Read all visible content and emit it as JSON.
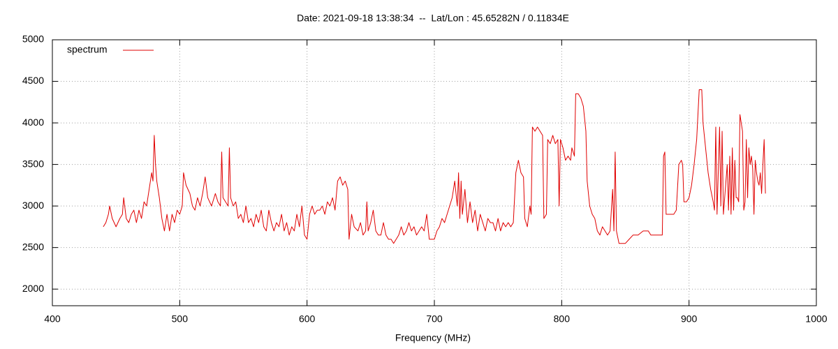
{
  "chart_data": {
    "type": "line",
    "title": "Date: 2021-09-18 13:38:34  --  Lat/Lon : 45.65282N / 0.11834E",
    "x_label": "Frequency (MHz)",
    "xlim": [
      400,
      1000
    ],
    "xticks": [
      400,
      500,
      600,
      700,
      800,
      900,
      1000
    ],
    "ylim": [
      1800,
      5000
    ],
    "yticks": [
      2000,
      2500,
      3000,
      3500,
      4000,
      4500,
      5000
    ],
    "grid": true,
    "legend": "top-left",
    "x": [
      440,
      442,
      444,
      445,
      447,
      450,
      453,
      455,
      456,
      458,
      460,
      462,
      464,
      466,
      468,
      470,
      472,
      474,
      476,
      478,
      479,
      480,
      481,
      482,
      484,
      486,
      488,
      490,
      492,
      494,
      496,
      498,
      500,
      502,
      503,
      505,
      508,
      510,
      512,
      514,
      516,
      518,
      520,
      522,
      525,
      528,
      530,
      532,
      533,
      534,
      536,
      538,
      539,
      540,
      542,
      544,
      546,
      548,
      550,
      552,
      554,
      556,
      558,
      560,
      562,
      564,
      566,
      568,
      570,
      572,
      574,
      576,
      578,
      580,
      582,
      584,
      586,
      588,
      590,
      592,
      594,
      596,
      598,
      600,
      602,
      604,
      606,
      608,
      610,
      612,
      614,
      616,
      618,
      620,
      622,
      624,
      626,
      628,
      630,
      632,
      633,
      635,
      637,
      640,
      642,
      644,
      646,
      647,
      648,
      650,
      652,
      654,
      656,
      658,
      660,
      662,
      664,
      666,
      668,
      670,
      672,
      674,
      676,
      678,
      680,
      682,
      684,
      686,
      688,
      690,
      692,
      694,
      696,
      698,
      700,
      702,
      704,
      706,
      708,
      710,
      712,
      714,
      716,
      718,
      719,
      720,
      721,
      722,
      724,
      726,
      728,
      730,
      732,
      734,
      736,
      738,
      740,
      742,
      744,
      746,
      748,
      750,
      752,
      754,
      756,
      758,
      760,
      762,
      764,
      766,
      768,
      770,
      771,
      773,
      775,
      776,
      777,
      779,
      781,
      783,
      785,
      786,
      788,
      789,
      791,
      793,
      795,
      797,
      798,
      799,
      801,
      803,
      805,
      807,
      808,
      810,
      811,
      813,
      815,
      817,
      819,
      820,
      822,
      824,
      826,
      828,
      830,
      832,
      834,
      836,
      838,
      840,
      841,
      842,
      843,
      845,
      847,
      850,
      853,
      856,
      860,
      864,
      868,
      870,
      873,
      876,
      878,
      879,
      880,
      881,
      882,
      885,
      888,
      890,
      892,
      894,
      895,
      896,
      898,
      900,
      902,
      904,
      906,
      908,
      910,
      911,
      913,
      915,
      917,
      919,
      920,
      921,
      922,
      924,
      925,
      926,
      927,
      929,
      930,
      931,
      932,
      933,
      934,
      935,
      936,
      937,
      938,
      939,
      940,
      942,
      943,
      944,
      945,
      946,
      947,
      948,
      949,
      950,
      951,
      952,
      953,
      954,
      955,
      956,
      957,
      958,
      959,
      960
    ],
    "series": [
      {
        "name": "spectrum",
        "color": "#e00000",
        "values": [
          2750,
          2800,
          2900,
          3000,
          2850,
          2750,
          2850,
          2900,
          3100,
          2850,
          2800,
          2900,
          2950,
          2800,
          2950,
          2850,
          3050,
          3000,
          3200,
          3400,
          3300,
          3850,
          3500,
          3300,
          3100,
          2850,
          2700,
          2900,
          2700,
          2900,
          2800,
          2950,
          2900,
          3000,
          3400,
          3250,
          3150,
          3000,
          2950,
          3100,
          3000,
          3150,
          3350,
          3100,
          3000,
          3150,
          3050,
          3000,
          3650,
          3100,
          3050,
          3000,
          3700,
          3100,
          3000,
          3050,
          2850,
          2900,
          2800,
          3000,
          2800,
          2850,
          2750,
          2900,
          2800,
          2950,
          2750,
          2700,
          2950,
          2800,
          2700,
          2800,
          2750,
          2900,
          2700,
          2800,
          2650,
          2750,
          2700,
          2900,
          2750,
          3000,
          2650,
          2600,
          2900,
          3000,
          2900,
          2950,
          2950,
          3000,
          2900,
          3050,
          3000,
          3100,
          2950,
          3300,
          3350,
          3250,
          3300,
          3200,
          2600,
          2900,
          2750,
          2700,
          2800,
          2650,
          2700,
          3050,
          2700,
          2800,
          2950,
          2700,
          2650,
          2650,
          2800,
          2650,
          2600,
          2600,
          2550,
          2600,
          2650,
          2750,
          2650,
          2700,
          2800,
          2700,
          2750,
          2650,
          2700,
          2750,
          2700,
          2900,
          2600,
          2600,
          2600,
          2700,
          2750,
          2850,
          2800,
          2900,
          3000,
          3100,
          3300,
          3000,
          3400,
          2850,
          3300,
          2900,
          3200,
          2800,
          3050,
          2800,
          2950,
          2700,
          2900,
          2800,
          2700,
          2850,
          2800,
          2800,
          2700,
          2850,
          2700,
          2800,
          2750,
          2800,
          2750,
          2800,
          3400,
          3550,
          3400,
          3350,
          2850,
          2750,
          3000,
          2900,
          3950,
          3900,
          3950,
          3900,
          3850,
          2850,
          2900,
          3800,
          3750,
          3850,
          3750,
          3800,
          3000,
          3800,
          3700,
          3550,
          3600,
          3550,
          3700,
          3600,
          4350,
          4350,
          4300,
          4200,
          3900,
          3300,
          3000,
          2900,
          2850,
          2700,
          2650,
          2750,
          2700,
          2650,
          2700,
          3200,
          2700,
          3650,
          2700,
          2550,
          2550,
          2550,
          2600,
          2650,
          2650,
          2700,
          2700,
          2650,
          2650,
          2650,
          2650,
          2650,
          3600,
          3650,
          2900,
          2900,
          2900,
          2950,
          3500,
          3550,
          3500,
          3050,
          3050,
          3100,
          3250,
          3500,
          3800,
          4400,
          4400,
          4000,
          3700,
          3400,
          3200,
          3050,
          2950,
          3950,
          2900,
          3950,
          3000,
          3900,
          2900,
          3300,
          3500,
          2950,
          3600,
          2900,
          3700,
          2950,
          3550,
          3100,
          3100,
          3050,
          4100,
          3900,
          2950,
          3050,
          3800,
          3100,
          3700,
          3500,
          3600,
          3450,
          2900,
          3550,
          3400,
          3300,
          3250,
          3400,
          3150,
          3500,
          3800,
          3150
        ]
      }
    ]
  }
}
